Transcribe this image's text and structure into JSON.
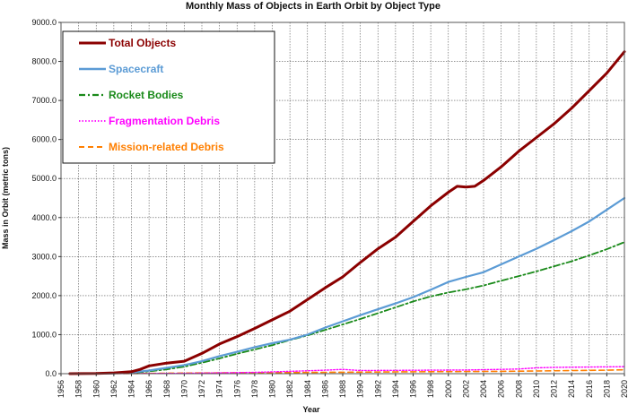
{
  "chart_data": {
    "type": "line",
    "title": "Monthly Mass of Objects in Earth Orbit by Object Type",
    "xlabel": "Year",
    "ylabel": "Mass in Orbit (metric tons)",
    "xlim": [
      1956,
      2020
    ],
    "ylim": [
      0,
      9000
    ],
    "x_ticks": [
      1956,
      1958,
      1960,
      1962,
      1964,
      1966,
      1968,
      1970,
      1972,
      1974,
      1976,
      1978,
      1980,
      1982,
      1984,
      1986,
      1988,
      1990,
      1992,
      1994,
      1996,
      1998,
      2000,
      2002,
      2004,
      2006,
      2008,
      2010,
      2012,
      2014,
      2016,
      2018,
      2020
    ],
    "y_ticks": [
      "0.0",
      "1000.0",
      "2000.0",
      "3000.0",
      "4000.0",
      "5000.0",
      "6000.0",
      "7000.0",
      "8000.0",
      "9000.0"
    ],
    "grid": true,
    "legend_position": "top-left",
    "series": [
      {
        "name": "Total Objects",
        "color": "#8b0000",
        "style": "solid",
        "x": [
          1957,
          1960,
          1962,
          1964,
          1965,
          1966,
          1968,
          1970,
          1972,
          1974,
          1976,
          1978,
          1980,
          1982,
          1984,
          1986,
          1988,
          1990,
          1992,
          1994,
          1996,
          1998,
          2000,
          2001,
          2002,
          2003,
          2004,
          2006,
          2008,
          2010,
          2012,
          2014,
          2016,
          2018,
          2020
        ],
        "y": [
          0,
          5,
          20,
          50,
          110,
          200,
          270,
          320,
          520,
          760,
          950,
          1160,
          1380,
          1600,
          1900,
          2200,
          2480,
          2850,
          3200,
          3500,
          3900,
          4300,
          4650,
          4800,
          4780,
          4800,
          4950,
          5300,
          5700,
          6050,
          6400,
          6800,
          7250,
          7700,
          8250
        ]
      },
      {
        "name": "Spacecraft",
        "color": "#5b9bd5",
        "style": "solid",
        "x": [
          1957,
          1960,
          1962,
          1964,
          1966,
          1968,
          1970,
          1972,
          1974,
          1976,
          1978,
          1980,
          1982,
          1984,
          1986,
          1988,
          1990,
          1992,
          1994,
          1996,
          1998,
          2000,
          2002,
          2004,
          2006,
          2008,
          2010,
          2012,
          2014,
          2016,
          2018,
          2020
        ],
        "y": [
          0,
          3,
          10,
          30,
          80,
          150,
          220,
          320,
          450,
          560,
          680,
          780,
          870,
          1000,
          1180,
          1340,
          1500,
          1650,
          1800,
          1960,
          2150,
          2350,
          2480,
          2600,
          2800,
          3000,
          3200,
          3420,
          3650,
          3900,
          4200,
          4500
        ]
      },
      {
        "name": "Rocket Bodies",
        "color": "#1a8a1a",
        "style": "dashdot",
        "x": [
          1957,
          1960,
          1962,
          1964,
          1966,
          1968,
          1970,
          1972,
          1974,
          1976,
          1978,
          1980,
          1982,
          1984,
          1986,
          1988,
          1990,
          1992,
          1994,
          1996,
          1998,
          2000,
          2002,
          2004,
          2006,
          2008,
          2010,
          2012,
          2014,
          2016,
          2018,
          2020
        ],
        "y": [
          0,
          2,
          8,
          20,
          60,
          110,
          180,
          280,
          390,
          510,
          620,
          730,
          860,
          980,
          1120,
          1260,
          1400,
          1550,
          1700,
          1850,
          1980,
          2080,
          2160,
          2260,
          2380,
          2500,
          2620,
          2750,
          2880,
          3030,
          3190,
          3370
        ]
      },
      {
        "name": "Fragmentation Debris",
        "color": "#ff00ff",
        "style": "dotted",
        "x": [
          1957,
          1962,
          1966,
          1970,
          1974,
          1978,
          1982,
          1986,
          1988,
          1990,
          1994,
          1998,
          2002,
          2006,
          2008,
          2010,
          2012,
          2014,
          2016,
          2018,
          2020
        ],
        "y": [
          0,
          2,
          5,
          10,
          20,
          35,
          60,
          90,
          110,
          80,
          85,
          90,
          95,
          110,
          120,
          150,
          160,
          165,
          170,
          175,
          180
        ]
      },
      {
        "name": "Mission-related Debris",
        "color": "#ff7f00",
        "style": "dashed",
        "x": [
          1957,
          1962,
          1966,
          1970,
          1974,
          1978,
          1982,
          1986,
          1990,
          1994,
          1998,
          2002,
          2006,
          2010,
          2014,
          2018,
          2020
        ],
        "y": [
          0,
          3,
          8,
          15,
          20,
          25,
          30,
          35,
          40,
          45,
          50,
          55,
          60,
          70,
          80,
          90,
          100
        ]
      }
    ]
  }
}
